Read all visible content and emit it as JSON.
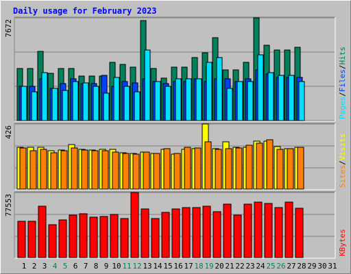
{
  "title": "Daily usage for February 2023",
  "colors": {
    "hits": "#00805c",
    "files": "#0040ff",
    "pages": "#00e0ff",
    "visits": "#ffff00",
    "sites": "#ff8000",
    "kbytes": "#ff0000",
    "weekend_day": "#00805c",
    "day": "#000000"
  },
  "chart_data": [
    {
      "type": "bar",
      "name": "hits-files-pages",
      "max_label": "7672",
      "ylim": [
        0,
        7672
      ],
      "legend": [
        {
          "text": "Pages",
          "color": "#00e0ff"
        },
        {
          "text": "Files",
          "color": "#0040ff"
        },
        {
          "text": "Hits",
          "color": "#00805c"
        }
      ],
      "series": [
        {
          "name": "Hits",
          "values": [
            3884,
            3884,
            5178,
            3516,
            3884,
            3884,
            3329,
            3329,
            3329,
            4362,
            4178,
            3976,
            7487,
            3884,
            3157,
            3976,
            3976,
            4730,
            5085,
            6209,
            3810,
            3810,
            4362,
            7672,
            5643,
            5269,
            5269,
            5459
          ]
        },
        {
          "name": "Files",
          "values": [
            2576,
            2576,
            3145,
            2408,
            2737,
            3145,
            2737,
            2737,
            3388,
            2576,
            2912,
            2828,
            3145,
            2912,
            2737,
            2912,
            2912,
            3145,
            2912,
            3145,
            3145,
            2912,
            3145,
            3760,
            3477,
            3240,
            3240,
            3240
          ]
        },
        {
          "name": "Pages",
          "values": [
            2576,
            2137,
            3600,
            2408,
            2274,
            2912,
            2828,
            2576,
            2067,
            3240,
            2576,
            2137,
            5269,
            2912,
            2576,
            3145,
            3145,
            3145,
            4362,
            4730,
            2408,
            2912,
            2912,
            4913,
            3600,
            3388,
            3388,
            2912
          ]
        }
      ]
    },
    {
      "type": "bar",
      "name": "visits-sites",
      "max_label": "426",
      "ylim": [
        0,
        426
      ],
      "legend": [
        {
          "text": "Sites",
          "color": "#ff8000"
        },
        {
          "text": "Visits",
          "color": "#ffff00"
        }
      ],
      "series": [
        {
          "name": "Visits",
          "values": [
            274,
            274,
            274,
            249,
            254,
            290,
            259,
            254,
            259,
            259,
            239,
            234,
            244,
            234,
            259,
            229,
            259,
            264,
            426,
            264,
            310,
            274,
            274,
            315,
            315,
            280,
            264,
            274
          ]
        },
        {
          "name": "Sites",
          "values": [
            269,
            249,
            259,
            239,
            249,
            269,
            254,
            249,
            249,
            244,
            234,
            229,
            244,
            234,
            264,
            234,
            274,
            269,
            310,
            259,
            264,
            269,
            285,
            300,
            325,
            259,
            264,
            274
          ]
        }
      ]
    },
    {
      "type": "bar",
      "name": "kbytes",
      "max_label": "77553",
      "ylim": [
        0,
        77553
      ],
      "legend": [
        {
          "text": "KBytes",
          "color": "#ff0000"
        }
      ],
      "series": [
        {
          "name": "KBytes",
          "values": [
            43224,
            43224,
            61018,
            39188,
            44563,
            50624,
            51966,
            47931,
            48600,
            51294,
            46590,
            77553,
            57646,
            46590,
            53972,
            57646,
            59651,
            59651,
            61018,
            54647,
            63728,
            50624,
            63728,
            66399,
            64398,
            59651,
            65731,
            58988
          ]
        }
      ]
    }
  ],
  "days": [
    "1",
    "2",
    "3",
    "4",
    "5",
    "6",
    "7",
    "8",
    "9",
    "10",
    "11",
    "12",
    "13",
    "14",
    "15",
    "16",
    "17",
    "18",
    "19",
    "20",
    "21",
    "22",
    "23",
    "24",
    "25",
    "26",
    "27",
    "28",
    "29",
    "30",
    "31"
  ],
  "weekend_days": [
    "4",
    "5",
    "11",
    "12",
    "18",
    "19",
    "25",
    "26"
  ]
}
